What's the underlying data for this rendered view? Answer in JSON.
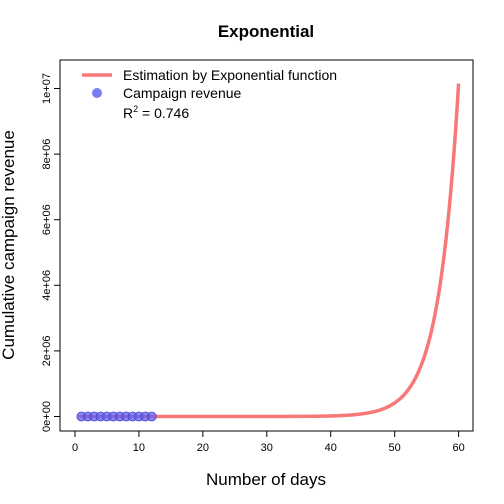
{
  "chart_data": {
    "type": "scatter",
    "title": "Exponential",
    "xlabel": "Number of days",
    "ylabel": "Cumulative campaign revenue",
    "xlim": [
      0,
      60
    ],
    "ylim": [
      0,
      10000000
    ],
    "x_ticks": [
      0,
      10,
      20,
      30,
      40,
      50,
      60
    ],
    "x_tick_labels": [
      "0",
      "10",
      "20",
      "30",
      "40",
      "50",
      "60"
    ],
    "y_ticks": [
      0,
      2000000,
      4000000,
      6000000,
      8000000,
      10000000
    ],
    "y_tick_labels": [
      "0e+00",
      "2e+06",
      "4e+06",
      "6e+06",
      "8e+06",
      "1e+07"
    ],
    "grid": false,
    "legend_position": "top-left",
    "series": [
      {
        "name": "Estimation by Exponential function",
        "kind": "line",
        "color": "#f87878",
        "x_range": [
          0.5,
          60
        ],
        "function": "exponential",
        "end_value": 10150000
      },
      {
        "name": "Campaign revenue",
        "kind": "points",
        "color": "#6464f0",
        "x": [
          1,
          2,
          3,
          4,
          5,
          6,
          7,
          8,
          9,
          10,
          11,
          12
        ],
        "y": [
          0,
          0,
          0,
          0,
          0,
          0,
          0,
          0,
          0,
          0,
          0,
          0
        ]
      }
    ],
    "annotation": {
      "r2_label": "R",
      "r2_superscript": "2",
      "r2_value": " = 0.746"
    }
  }
}
